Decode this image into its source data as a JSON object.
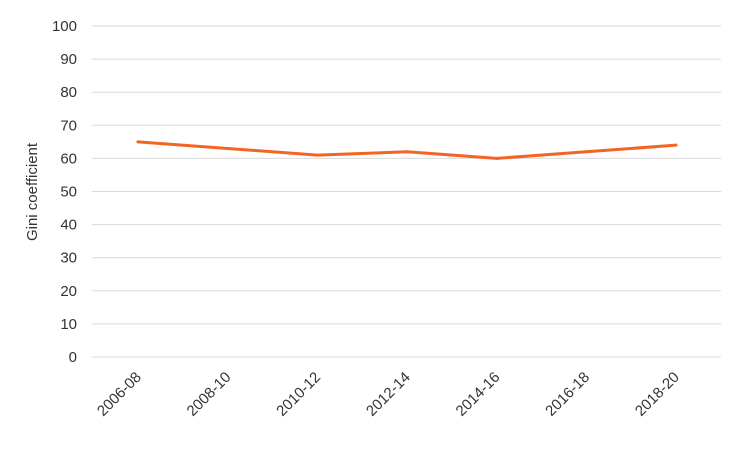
{
  "chart_data": {
    "type": "line",
    "title": "",
    "xlabel": "",
    "ylabel": "Gini coefficient",
    "categories": [
      "2006-08",
      "2008-10",
      "2010-12",
      "2012-14",
      "2014-16",
      "2016-18",
      "2018-20"
    ],
    "y_ticks": [
      "0",
      "10",
      "20",
      "30",
      "40",
      "50",
      "60",
      "70",
      "80",
      "90",
      "100"
    ],
    "ylim": [
      0,
      100
    ],
    "grid": true,
    "legend": "none",
    "series": [
      {
        "color": "#f26522",
        "values": [
          65,
          63,
          61,
          62,
          60,
          62,
          64
        ]
      }
    ],
    "colors": {
      "grid": "#d9d9d9",
      "text": "#333333"
    }
  }
}
